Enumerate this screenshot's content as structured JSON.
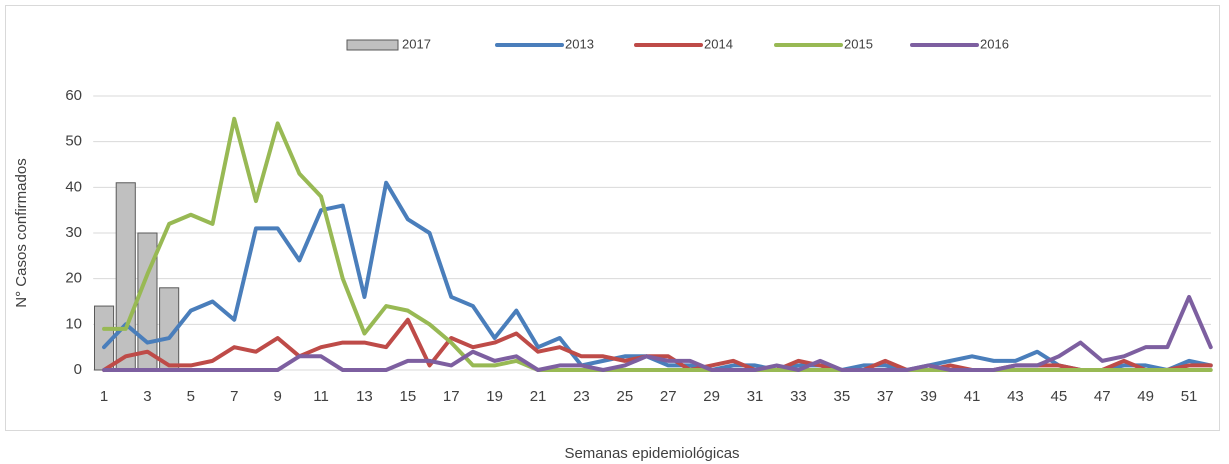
{
  "chart_data": {
    "type": "bar-line",
    "y_label": "N° Casos confirmados",
    "x_label": "Semanas epidemiológicas",
    "categories": [
      "1",
      null,
      "3",
      null,
      "5",
      null,
      "7",
      null,
      "9",
      null,
      "11",
      null,
      "13",
      null,
      "15",
      null,
      "17",
      null,
      "19",
      null,
      "21",
      null,
      "23",
      null,
      "25",
      null,
      "27",
      null,
      "29",
      null,
      "31",
      null,
      "33",
      null,
      "35",
      null,
      "37",
      null,
      "39",
      null,
      "41",
      null,
      "43",
      null,
      "45",
      null,
      "47",
      null,
      "49",
      null,
      "51",
      null
    ],
    "ylim": [
      0,
      60
    ],
    "yticks": [
      0,
      10,
      20,
      30,
      40,
      50,
      60
    ],
    "grid": true,
    "legend": "top",
    "series": [
      {
        "name": "2017",
        "type": "bar",
        "color": "#c0c0c0",
        "values": [
          14,
          41,
          30,
          18,
          null,
          null,
          null,
          null,
          null,
          null,
          null,
          null,
          null,
          null,
          null,
          null,
          null,
          null,
          null,
          null,
          null,
          null,
          null,
          null,
          null,
          null,
          null,
          null,
          null,
          null,
          null,
          null,
          null,
          null,
          null,
          null,
          null,
          null,
          null,
          null,
          null,
          null,
          null,
          null,
          null,
          null,
          null,
          null,
          null,
          null,
          null,
          null
        ]
      },
      {
        "name": "2013",
        "type": "line",
        "color": "#4a7ebb",
        "values": [
          5,
          10,
          6,
          7,
          13,
          15,
          11,
          31,
          31,
          24,
          35,
          36,
          16,
          41,
          33,
          30,
          16,
          14,
          7,
          13,
          5,
          7,
          1,
          2,
          3,
          3,
          1,
          1,
          0,
          1,
          1,
          0,
          1,
          1,
          0,
          1,
          1,
          0,
          1,
          2,
          3,
          2,
          2,
          4,
          1,
          0,
          0,
          1,
          1,
          0,
          2,
          1
        ]
      },
      {
        "name": "2014",
        "type": "line",
        "color": "#be4b48",
        "values": [
          0,
          3,
          4,
          1,
          1,
          2,
          5,
          4,
          7,
          3,
          5,
          6,
          6,
          5,
          11,
          1,
          7,
          5,
          6,
          8,
          4,
          5,
          3,
          3,
          2,
          3,
          3,
          0,
          1,
          2,
          0,
          0,
          2,
          1,
          0,
          0,
          2,
          0,
          0,
          1,
          0,
          0,
          1,
          1,
          1,
          0,
          0,
          2,
          0,
          0,
          1,
          1
        ]
      },
      {
        "name": "2015",
        "type": "line",
        "color": "#98b954",
        "values": [
          9,
          9,
          21,
          32,
          34,
          32,
          55,
          37,
          54,
          43,
          38,
          20,
          8,
          14,
          13,
          10,
          6,
          1,
          1,
          2,
          0,
          0,
          0,
          0,
          0,
          0,
          0,
          0,
          0,
          0,
          0,
          0,
          0,
          0,
          0,
          0,
          0,
          0,
          0,
          0,
          0,
          0,
          0,
          0,
          0,
          0,
          0,
          0,
          0,
          0,
          0,
          0
        ]
      },
      {
        "name": "2016",
        "type": "line",
        "color": "#7d5fa0",
        "values": [
          0,
          0,
          0,
          0,
          0,
          0,
          0,
          0,
          0,
          3,
          3,
          0,
          0,
          0,
          2,
          2,
          1,
          4,
          2,
          3,
          0,
          1,
          1,
          0,
          1,
          3,
          2,
          2,
          0,
          0,
          0,
          1,
          0,
          2,
          0,
          0,
          0,
          0,
          1,
          0,
          0,
          0,
          1,
          1,
          3,
          6,
          2,
          3,
          5,
          5,
          16,
          5
        ]
      }
    ]
  }
}
